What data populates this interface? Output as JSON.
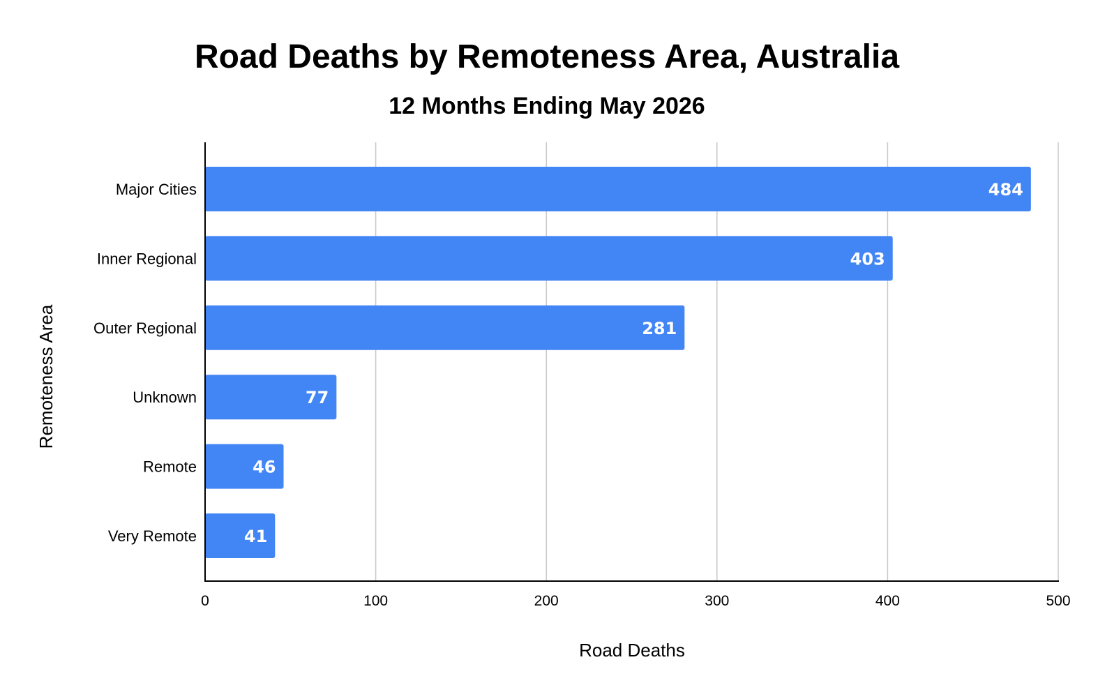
{
  "chart_data": {
    "type": "bar",
    "orientation": "horizontal",
    "title": "Road Deaths by Remoteness Area, Australia",
    "subtitle": "12 Months Ending May 2026",
    "xlabel": "Road Deaths",
    "ylabel": "Remoteness Area",
    "categories": [
      "Major Cities",
      "Inner Regional",
      "Outer Regional",
      "Unknown",
      "Remote",
      "Very Remote"
    ],
    "values": [
      484,
      403,
      281,
      77,
      46,
      41
    ],
    "value_labels": [
      "484",
      "403",
      "281",
      "77",
      "46",
      "41"
    ],
    "xlim": [
      0,
      500
    ],
    "xticks": [
      0,
      100,
      200,
      300,
      400,
      500
    ],
    "xtick_labels": [
      "0",
      "100",
      "200",
      "300",
      "400",
      "500"
    ],
    "grid": "vertical",
    "legend": "none",
    "bar_color": "#4285f4",
    "label_color": "#ffffff"
  }
}
